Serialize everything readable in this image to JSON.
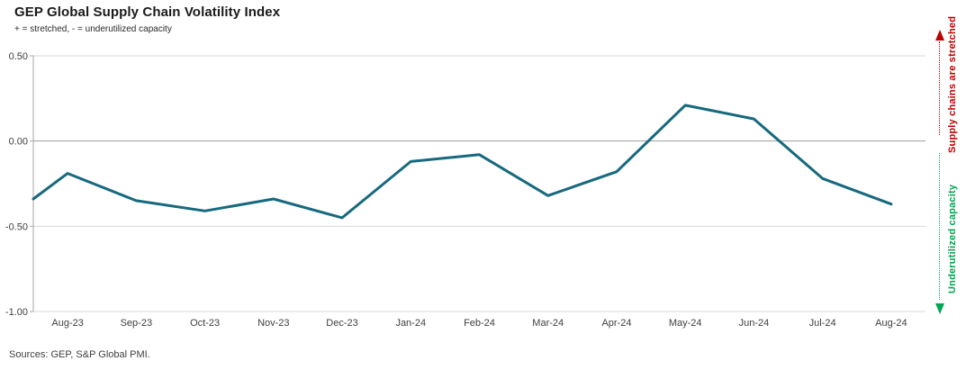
{
  "header": {
    "title": "GEP Global Supply Chain Volatility Index",
    "subtitle": "+ = stretched, - = underutilized capacity"
  },
  "footer": {
    "source": "Sources: GEP, S&P Global PMI."
  },
  "annotations": {
    "stretched_label": "Supply chains are stretched",
    "stretched_color": "#c00000",
    "underutilized_label": "Underutilized capacity",
    "underutilized_color": "#00a651"
  },
  "chart_data": {
    "type": "line",
    "title": "GEP Global Supply Chain Volatility Index",
    "subtitle": "+ = stretched, - = underutilized capacity",
    "source": "Sources: GEP, S&P Global PMI.",
    "categories": [
      "Aug-23",
      "Sep-23",
      "Oct-23",
      "Nov-23",
      "Dec-23",
      "Jan-24",
      "Feb-24",
      "Mar-24",
      "Apr-24",
      "May-24",
      "Jun-24",
      "Jul-24",
      "Aug-24"
    ],
    "values": [
      -0.19,
      -0.35,
      -0.41,
      -0.34,
      -0.45,
      -0.12,
      -0.08,
      -0.32,
      -0.18,
      0.21,
      0.13,
      -0.22,
      -0.37
    ],
    "edge_start_value": -0.34,
    "ylim": [
      -1.0,
      0.5
    ],
    "yticks": [
      0.5,
      0,
      -0.5,
      -1
    ],
    "ytick_labels": [
      "0.50",
      "0.00",
      "-0.50",
      "-1.00"
    ],
    "grid": "horizontal",
    "legend": "none",
    "line_color": "#16697e",
    "zero_line_color": "#9b9b9b",
    "gridline_color": "#d9d9d9",
    "axis_color": "#a6a6a6",
    "tick_label_color": "#404040"
  }
}
